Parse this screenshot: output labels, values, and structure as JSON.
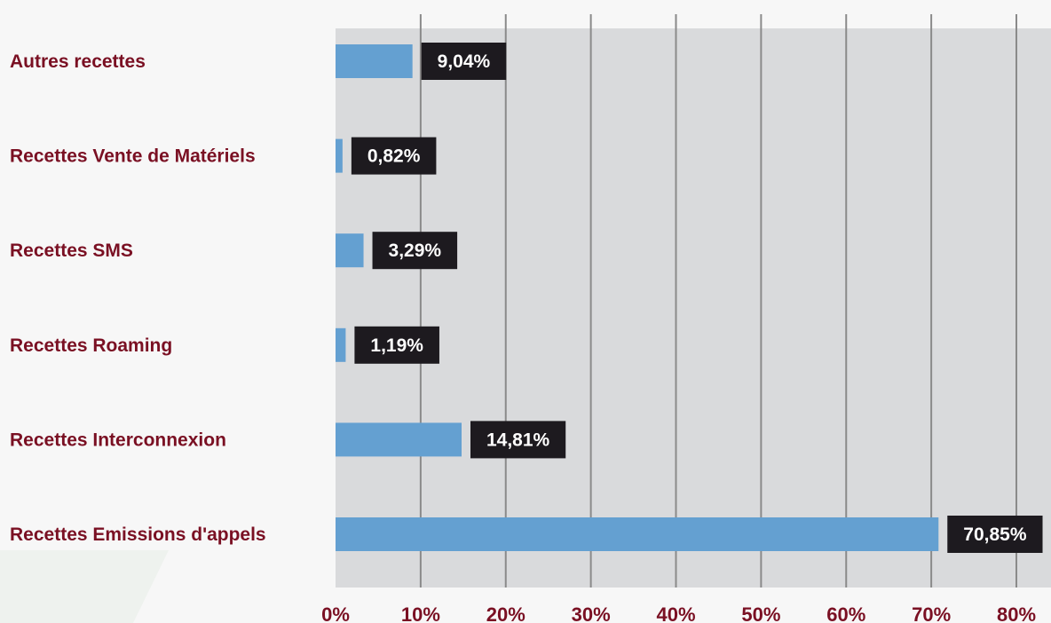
{
  "chart_data": {
    "type": "bar",
    "orientation": "horizontal",
    "categories": [
      "Autres recettes",
      "Recettes Vente de Matériels",
      "Recettes SMS",
      "Recettes Roaming",
      "Recettes Interconnexion",
      "Recettes Emissions d'appels"
    ],
    "values": [
      9.04,
      0.82,
      3.29,
      1.19,
      14.81,
      70.85
    ],
    "value_labels": [
      "9,04%",
      "0,82%",
      "3,29%",
      "1,19%",
      "14,81%",
      "70,85%"
    ],
    "xlim": [
      0,
      80
    ],
    "xticks": [
      0,
      10,
      20,
      30,
      40,
      50,
      60,
      70,
      80
    ],
    "xtick_labels": [
      "0%",
      "10%",
      "20%",
      "30%",
      "40%",
      "50%",
      "60%",
      "70%",
      "80%"
    ],
    "grid": true,
    "legend": false,
    "colors": {
      "bar": "#64a0d1",
      "plot_background": "#d9dadc",
      "gridline": "#8a8a8a",
      "value_label_background": "#1d1a1f",
      "value_label_text": "#ffffff",
      "category_label_text": "#7a1023",
      "page_background": "#f7f7f7"
    }
  }
}
